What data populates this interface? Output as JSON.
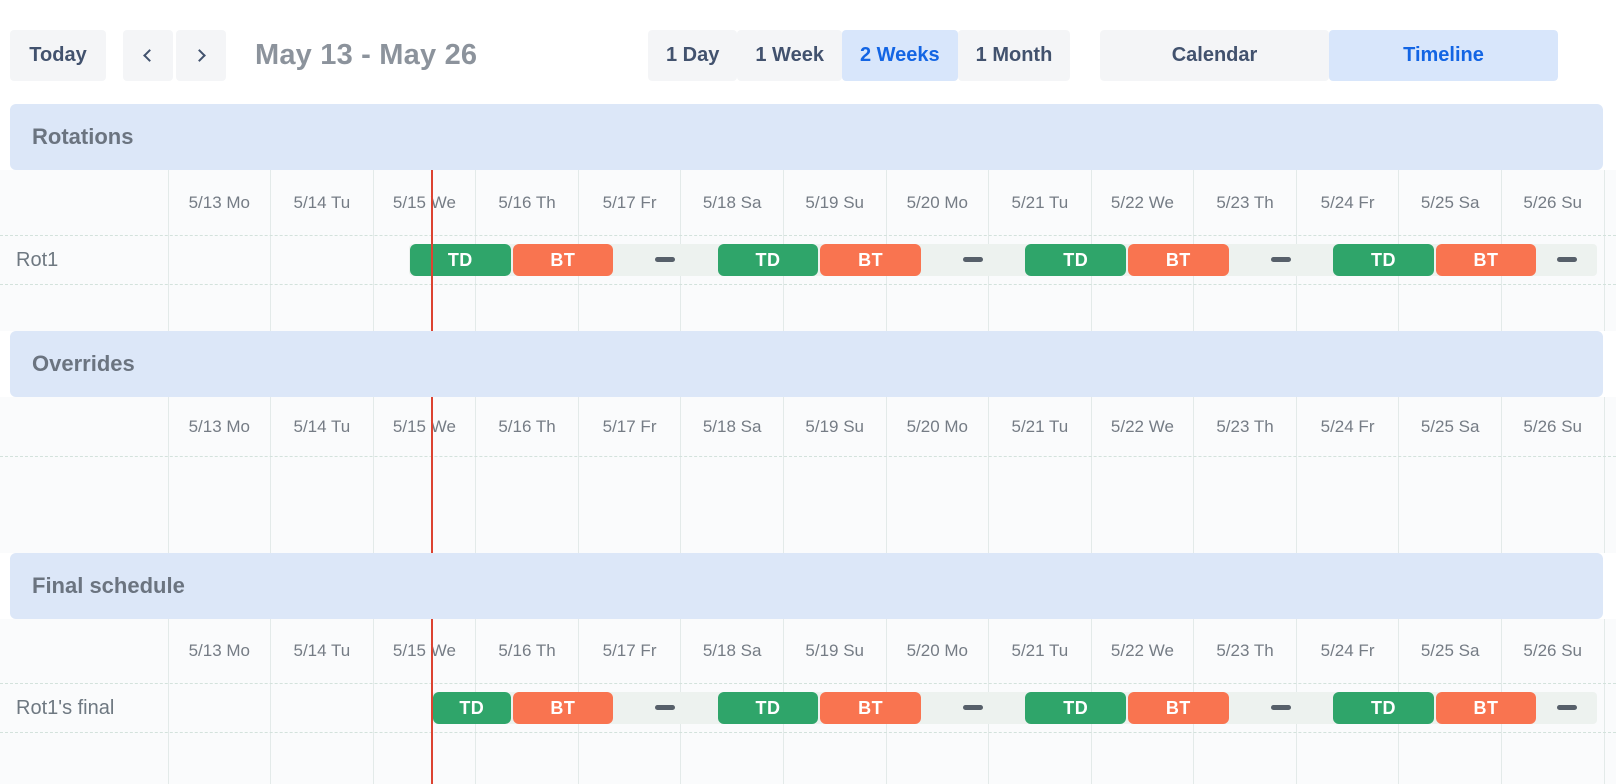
{
  "toolbar": {
    "today_label": "Today",
    "prev_icon": "chevron-left",
    "next_icon": "chevron-right",
    "title": "May 13 - May 26",
    "views": [
      {
        "label": "1 Day",
        "selected": false
      },
      {
        "label": "1 Week",
        "selected": false
      },
      {
        "label": "2 Weeks",
        "selected": true
      },
      {
        "label": "1 Month",
        "selected": false
      }
    ],
    "modes": [
      {
        "label": "Calendar",
        "selected": false
      },
      {
        "label": "Timeline",
        "selected": true
      }
    ]
  },
  "colors": {
    "button_bg": "#f4f5f7",
    "button_text": "#42526e",
    "selected_bg": "#d8e6fb",
    "selected_text": "#1365e4",
    "band_bg": "#dce7f8",
    "shift_td": "#2fa56a",
    "shift_bt": "#f97450",
    "track_bg": "#edf2ef",
    "gap_dash": "#57606a",
    "now_line": "#dc4331"
  },
  "timeline": {
    "dates": [
      "5/13 Mo",
      "5/14 Tu",
      "5/15 We",
      "5/16 Th",
      "5/17 Fr",
      "5/18 Sa",
      "5/19 Su",
      "5/20 Mo",
      "5/21 Tu",
      "5/22 We",
      "5/23 Th",
      "5/24 Fr",
      "5/25 Sa",
      "5/26 Su"
    ],
    "now_day": 2.574,
    "sections": [
      {
        "kind": "rotations",
        "title": "Rotations",
        "rows": [
          {
            "label": "Rot1",
            "track_start": 2.35,
            "track_end": 13.93,
            "segments": [
              {
                "type": "shift",
                "label": "TD",
                "start": 2.35,
                "end": 3.35
              },
              {
                "type": "shift",
                "label": "BT",
                "start": 3.35,
                "end": 4.35
              },
              {
                "type": "gap",
                "start": 4.35,
                "end": 5.35
              },
              {
                "type": "shift",
                "label": "TD",
                "start": 5.35,
                "end": 6.35
              },
              {
                "type": "shift",
                "label": "BT",
                "start": 6.35,
                "end": 7.35
              },
              {
                "type": "gap",
                "start": 7.35,
                "end": 8.35
              },
              {
                "type": "shift",
                "label": "TD",
                "start": 8.35,
                "end": 9.35
              },
              {
                "type": "shift",
                "label": "BT",
                "start": 9.35,
                "end": 10.35
              },
              {
                "type": "gap",
                "start": 10.35,
                "end": 11.35
              },
              {
                "type": "shift",
                "label": "TD",
                "start": 11.35,
                "end": 12.35
              },
              {
                "type": "shift",
                "label": "BT",
                "start": 12.35,
                "end": 13.35
              },
              {
                "type": "gap",
                "start": 13.35,
                "end": 13.93
              }
            ]
          }
        ]
      },
      {
        "kind": "overrides",
        "title": "Overrides",
        "rows": []
      },
      {
        "kind": "final",
        "title": "Final schedule",
        "rows": [
          {
            "label": "Rot1's final",
            "track_start": 2.574,
            "track_end": 13.93,
            "segments": [
              {
                "type": "shift",
                "label": "TD",
                "start": 2.574,
                "end": 3.35
              },
              {
                "type": "shift",
                "label": "BT",
                "start": 3.35,
                "end": 4.35
              },
              {
                "type": "gap",
                "start": 4.35,
                "end": 5.35
              },
              {
                "type": "shift",
                "label": "TD",
                "start": 5.35,
                "end": 6.35
              },
              {
                "type": "shift",
                "label": "BT",
                "start": 6.35,
                "end": 7.35
              },
              {
                "type": "gap",
                "start": 7.35,
                "end": 8.35
              },
              {
                "type": "shift",
                "label": "TD",
                "start": 8.35,
                "end": 9.35
              },
              {
                "type": "shift",
                "label": "BT",
                "start": 9.35,
                "end": 10.35
              },
              {
                "type": "gap",
                "start": 10.35,
                "end": 11.35
              },
              {
                "type": "shift",
                "label": "TD",
                "start": 11.35,
                "end": 12.35
              },
              {
                "type": "shift",
                "label": "BT",
                "start": 12.35,
                "end": 13.35
              },
              {
                "type": "gap",
                "start": 13.35,
                "end": 13.93
              }
            ]
          }
        ]
      }
    ]
  }
}
